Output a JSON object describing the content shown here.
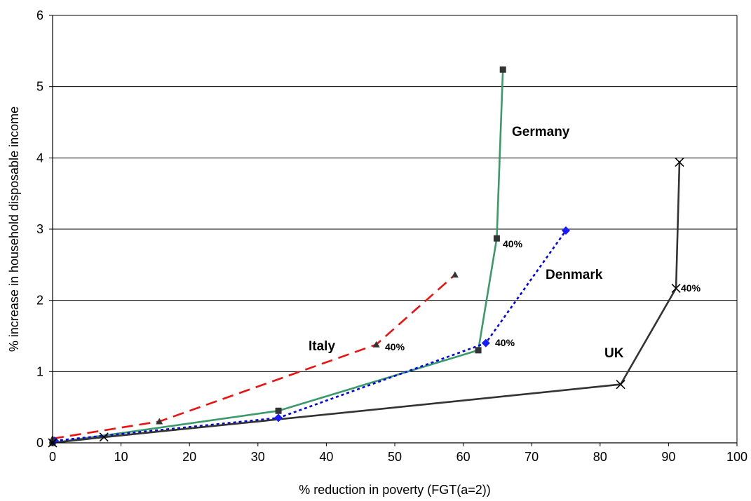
{
  "chart_data": {
    "type": "line",
    "xlabel": "% reduction in poverty (FGT(a=2))",
    "ylabel": "% increase in household disposable income",
    "xlim": [
      0,
      100
    ],
    "ylim": [
      0,
      6
    ],
    "xticks": [
      "0",
      "10",
      "20",
      "30",
      "40",
      "50",
      "60",
      "70",
      "80",
      "90",
      "100"
    ],
    "yticks": [
      "0",
      "1",
      "2",
      "3",
      "4",
      "5",
      "6"
    ],
    "grid": "horizontal",
    "series": [
      {
        "name": "Germany",
        "color": "#3a9a6a",
        "dash": "solid",
        "marker": "square",
        "marker_color": "#333333",
        "points": [
          [
            0,
            0
          ],
          [
            33,
            0.45
          ],
          [
            62.2,
            1.3
          ],
          [
            64.9,
            2.87
          ],
          [
            65.8,
            5.24
          ]
        ],
        "annotation": "40%"
      },
      {
        "name": "Denmark",
        "color": "#0000ee",
        "dash": "dotted",
        "marker": "diamond",
        "marker_color": "#1a1aff",
        "points": [
          [
            0.3,
            0.03
          ],
          [
            33,
            0.35
          ],
          [
            63.3,
            1.4
          ],
          [
            75,
            2.98
          ]
        ],
        "annotation": "40%"
      },
      {
        "name": "Italy",
        "color": "#ee1111",
        "dash": "dashed",
        "marker": "triangle",
        "marker_color": "#333333",
        "points": [
          [
            0,
            0.06
          ],
          [
            15.6,
            0.3
          ],
          [
            47.3,
            1.38
          ],
          [
            58.8,
            2.36
          ]
        ],
        "annotation": "40%"
      },
      {
        "name": "UK",
        "color": "#333333",
        "dash": "solid",
        "marker": "x",
        "marker_color": "#000000",
        "points": [
          [
            0,
            0
          ],
          [
            7.5,
            0.08
          ],
          [
            83,
            0.82
          ],
          [
            91.1,
            2.17
          ],
          [
            91.6,
            3.94
          ]
        ],
        "annotation": "40%"
      }
    ]
  }
}
